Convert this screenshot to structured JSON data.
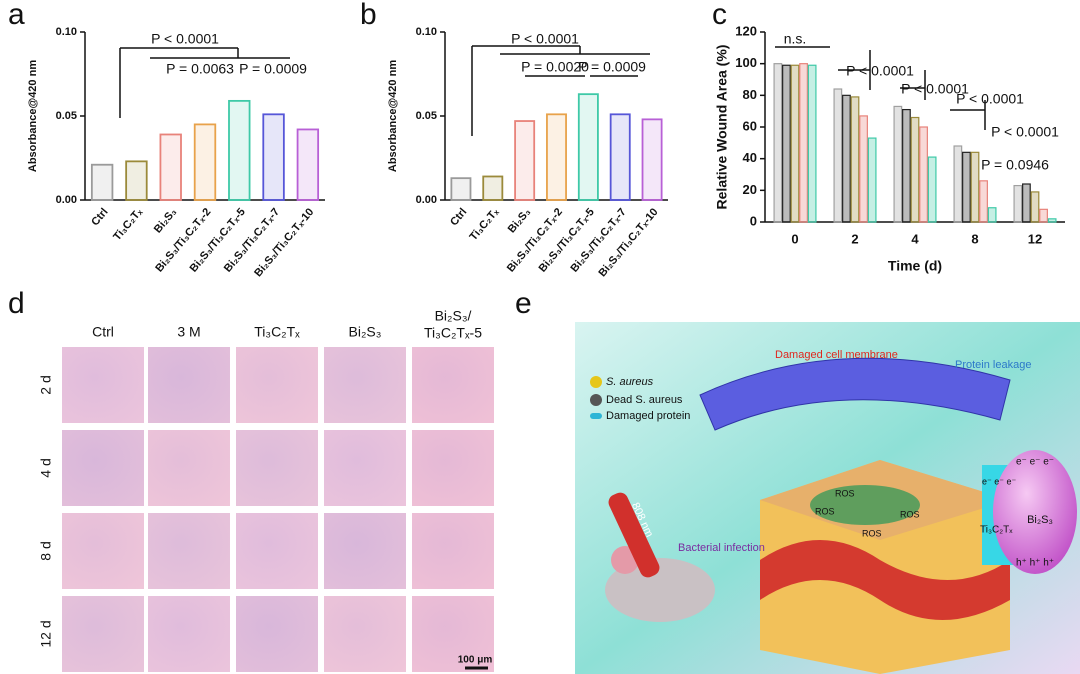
{
  "panel_labels": [
    "a",
    "b",
    "c",
    "d",
    "e"
  ],
  "chart_data": [
    {
      "type": "bar",
      "ylabel": "Absorbance@420 nm",
      "categories": [
        "Ctrl",
        "Ti₃C₂Tₓ",
        "Bi₂S₃",
        "Bi₂S₃/Ti₃C₂Tₓ-2",
        "Bi₂S₃/Ti₃C₂Tₓ-5",
        "Bi₂S₃/Ti₃C₂Tₓ-7",
        "Bi₂S₃/Ti₃C₂Tₓ-10"
      ],
      "values": [
        0.021,
        0.023,
        0.039,
        0.045,
        0.059,
        0.051,
        0.042
      ],
      "colors": [
        "#9a9a9a",
        "#9b8a3a",
        "#e8827a",
        "#e8a24a",
        "#3ec9a7",
        "#5656d8",
        "#b860d6"
      ],
      "ylim": [
        0,
        0.1
      ],
      "yticks": [
        {
          "value": 0,
          "label": "0.00"
        },
        {
          "value": 0.05,
          "label": "0.05"
        },
        {
          "value": 0.1,
          "label": "0.10"
        }
      ],
      "annotations": [
        "P < 0.0001",
        "P = 0.0063",
        "P = 0.0009"
      ]
    },
    {
      "type": "bar",
      "ylabel": "Absorbance@420 nm",
      "categories": [
        "Ctrl",
        "Ti₃C₂Tₓ",
        "Bi₂S₃",
        "Bi₂S₃/Ti₃C₂Tₓ-2",
        "Bi₂S₃/Ti₃C₂Tₓ-5",
        "Bi₂S₃/Ti₃C₂Tₓ-7",
        "Bi₂S₃/Ti₃C₂Tₓ-10"
      ],
      "values": [
        0.013,
        0.014,
        0.047,
        0.051,
        0.063,
        0.051,
        0.048
      ],
      "colors": [
        "#9a9a9a",
        "#9b8a3a",
        "#e8827a",
        "#e8a24a",
        "#3ec9a7",
        "#5656d8",
        "#b860d6"
      ],
      "ylim": [
        0,
        0.1
      ],
      "yticks": [
        {
          "value": 0,
          "label": "0.00"
        },
        {
          "value": 0.05,
          "label": "0.05"
        },
        {
          "value": 0.1,
          "label": "0.10"
        }
      ],
      "annotations": [
        "P < 0.0001",
        "P = 0.0020",
        "P = 0.0009"
      ]
    },
    {
      "type": "grouped_bar",
      "xlabel": "Time (d)",
      "ylabel": "Relative Wound Area (%)",
      "categories": [
        "0",
        "2",
        "4",
        "8",
        "12"
      ],
      "series": [
        {
          "color": "#a0a0a0",
          "values": [
            100,
            84,
            73,
            48,
            23
          ]
        },
        {
          "color": "#222222",
          "values": [
            99,
            80,
            71,
            44,
            24
          ]
        },
        {
          "color": "#9b8a3a",
          "values": [
            99,
            79,
            66,
            44,
            19
          ]
        },
        {
          "color": "#e8827a",
          "values": [
            100,
            67,
            60,
            26,
            8
          ]
        },
        {
          "color": "#3ec9a7",
          "values": [
            99,
            53,
            41,
            9,
            2
          ]
        }
      ],
      "ylim": [
        0,
        120
      ],
      "yticks": [
        0,
        20,
        40,
        60,
        80,
        100,
        120
      ],
      "annotations": [
        "n.s.",
        "P < 0.0001",
        "P < 0.0001",
        "P < 0.0001",
        "P < 0.0001",
        "P = 0.0946"
      ]
    }
  ],
  "histology": {
    "columns": [
      [
        "Ctrl"
      ],
      [
        "3 M"
      ],
      [
        "Ti₃C₂Tₓ"
      ],
      [
        "Bi₂S₃"
      ],
      [
        "Bi₂S₃/",
        "Ti₃C₂Tₓ-5"
      ]
    ],
    "rows": [
      "2 d",
      "4 d",
      "8 d",
      "12 d"
    ],
    "scale_bar": "100 μm"
  },
  "schematic": {
    "damaged_membrane": "Damaged cell membrane",
    "protein_leakage": "Protein leakage",
    "legend": [
      "S. aureus",
      "Dead S. aureus",
      "Damaged protein"
    ],
    "laser": "808 nm",
    "infection": "Bacterial infection",
    "ros": [
      "ROS",
      "ROS",
      "ROS",
      "ROS"
    ],
    "electrons_left": "e⁻ e⁻ e⁻",
    "mxene": "Ti₃C₂Tₓ",
    "electrons": "e⁻ e⁻ e⁻",
    "bi2s3": "Bi₂S₃",
    "holes": "h⁺ h⁺ h⁺"
  }
}
